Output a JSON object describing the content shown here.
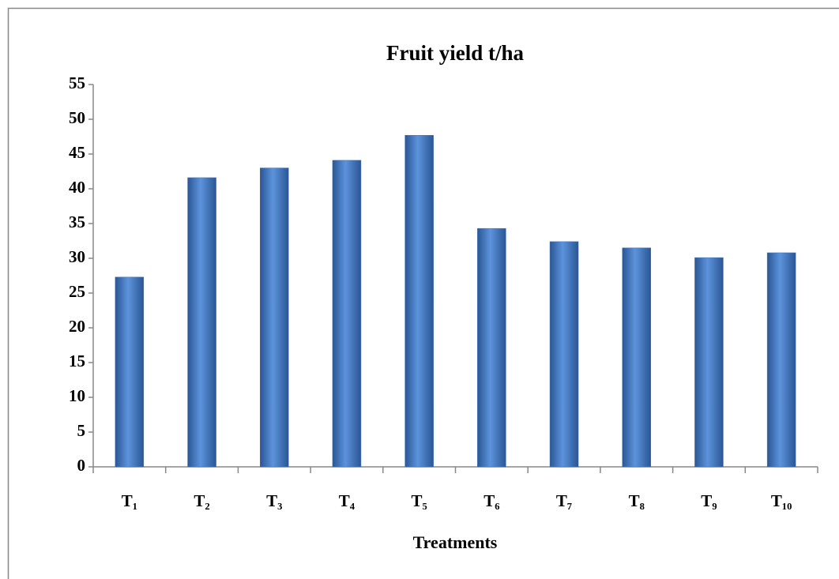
{
  "chart_data": {
    "type": "bar",
    "title": "Fruit yield t/ha",
    "x_label": "Treatments",
    "categories": [
      "T₁",
      "T₂",
      "T₃",
      "T₄",
      "T₅",
      "T₆",
      "T₇",
      "T₈",
      "T₉",
      "T₁₀"
    ],
    "values": [
      27.3,
      41.6,
      43.0,
      44.1,
      47.7,
      34.3,
      32.4,
      31.5,
      30.1,
      30.8
    ],
    "color": "#3f74c0",
    "ylim": [
      0,
      55
    ],
    "yticks": [
      0,
      5,
      10,
      15,
      20,
      25,
      30,
      35,
      40,
      45,
      50,
      55
    ],
    "grid": false
  }
}
